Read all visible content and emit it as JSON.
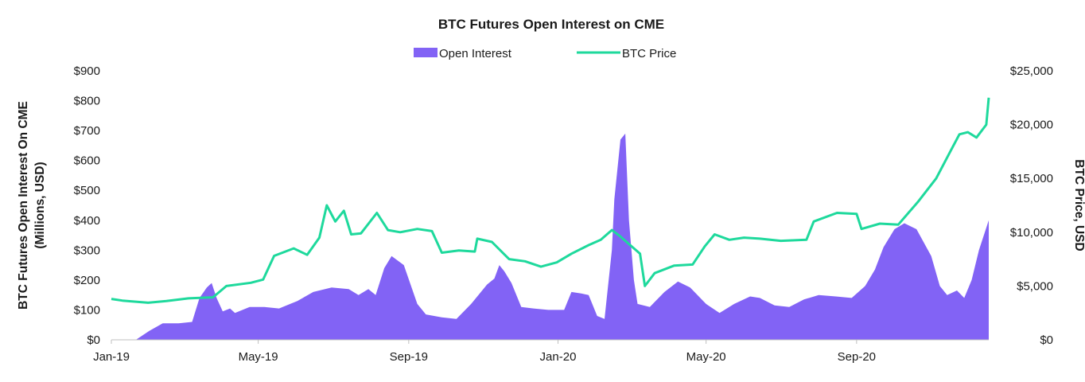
{
  "chart_data": {
    "type": "area",
    "title": "BTC Futures Open Interest on CME",
    "ylabel_left_line1": "BTC Futures Open Interest On CME",
    "ylabel_left_line2": "(Millions, USD)",
    "ylabel_right": "BTC Price, USD",
    "legend_position": "top-center",
    "grid": false,
    "x_start": "2019-01-01",
    "x_end": "2020-12-18",
    "x_ticks": [
      {
        "label": "Jan-19",
        "date": "2019-01-01"
      },
      {
        "label": "May-19",
        "date": "2019-05-01"
      },
      {
        "label": "Sep-19",
        "date": "2019-09-01"
      },
      {
        "label": "Jan-20",
        "date": "2020-01-01"
      },
      {
        "label": "May-20",
        "date": "2020-05-01"
      },
      {
        "label": "Sep-20",
        "date": "2020-09-01"
      }
    ],
    "ylim_left": [
      0,
      900
    ],
    "ylim_right": [
      0,
      25000
    ],
    "y_ticks_left": [
      {
        "label": "$0",
        "value": 0
      },
      {
        "label": "$100",
        "value": 100
      },
      {
        "label": "$200",
        "value": 200
      },
      {
        "label": "$300",
        "value": 300
      },
      {
        "label": "$400",
        "value": 400
      },
      {
        "label": "$500",
        "value": 500
      },
      {
        "label": "$600",
        "value": 600
      },
      {
        "label": "$700",
        "value": 700
      },
      {
        "label": "$800",
        "value": 800
      },
      {
        "label": "$900",
        "value": 900
      }
    ],
    "y_ticks_right": [
      {
        "label": "$0",
        "value": 0
      },
      {
        "label": "$5,000",
        "value": 5000
      },
      {
        "label": "$10,000",
        "value": 10000
      },
      {
        "label": "$15,000",
        "value": 15000
      },
      {
        "label": "$20,000",
        "value": 20000
      },
      {
        "label": "$25,000",
        "value": 25000
      }
    ],
    "series": [
      {
        "name": "Open Interest",
        "axis": "left",
        "color": "#8263f5",
        "kind": "area",
        "points": [
          [
            "2019-01-01",
            0
          ],
          [
            "2019-01-21",
            0
          ],
          [
            "2019-02-01",
            30
          ],
          [
            "2019-02-12",
            55
          ],
          [
            "2019-02-25",
            55
          ],
          [
            "2019-03-08",
            60
          ],
          [
            "2019-03-14",
            140
          ],
          [
            "2019-03-20",
            175
          ],
          [
            "2019-03-24",
            190
          ],
          [
            "2019-03-28",
            140
          ],
          [
            "2019-04-02",
            95
          ],
          [
            "2019-04-08",
            105
          ],
          [
            "2019-04-12",
            90
          ],
          [
            "2019-04-24",
            110
          ],
          [
            "2019-05-06",
            110
          ],
          [
            "2019-05-18",
            105
          ],
          [
            "2019-06-02",
            130
          ],
          [
            "2019-06-15",
            160
          ],
          [
            "2019-06-30",
            175
          ],
          [
            "2019-07-14",
            170
          ],
          [
            "2019-07-22",
            150
          ],
          [
            "2019-07-30",
            170
          ],
          [
            "2019-08-05",
            150
          ],
          [
            "2019-08-12",
            240
          ],
          [
            "2019-08-18",
            280
          ],
          [
            "2019-08-28",
            250
          ],
          [
            "2019-09-08",
            120
          ],
          [
            "2019-09-15",
            85
          ],
          [
            "2019-09-28",
            75
          ],
          [
            "2019-10-10",
            70
          ],
          [
            "2019-10-22",
            120
          ],
          [
            "2019-11-04",
            185
          ],
          [
            "2019-11-10",
            205
          ],
          [
            "2019-11-14",
            250
          ],
          [
            "2019-11-18",
            230
          ],
          [
            "2019-11-24",
            190
          ],
          [
            "2019-12-02",
            110
          ],
          [
            "2019-12-12",
            105
          ],
          [
            "2019-12-24",
            100
          ],
          [
            "2020-01-06",
            100
          ],
          [
            "2020-01-12",
            160
          ],
          [
            "2020-01-20",
            155
          ],
          [
            "2020-01-26",
            150
          ],
          [
            "2020-02-02",
            80
          ],
          [
            "2020-02-08",
            70
          ],
          [
            "2020-02-14",
            300
          ],
          [
            "2020-02-16",
            470
          ],
          [
            "2020-02-21",
            670
          ],
          [
            "2020-02-25",
            690
          ],
          [
            "2020-02-28",
            400
          ],
          [
            "2020-03-03",
            200
          ],
          [
            "2020-03-06",
            120
          ],
          [
            "2020-03-16",
            110
          ],
          [
            "2020-03-28",
            160
          ],
          [
            "2020-04-08",
            195
          ],
          [
            "2020-04-18",
            175
          ],
          [
            "2020-05-01",
            120
          ],
          [
            "2020-05-12",
            90
          ],
          [
            "2020-05-24",
            120
          ],
          [
            "2020-06-06",
            145
          ],
          [
            "2020-06-14",
            140
          ],
          [
            "2020-06-26",
            115
          ],
          [
            "2020-07-08",
            110
          ],
          [
            "2020-07-20",
            135
          ],
          [
            "2020-08-01",
            150
          ],
          [
            "2020-08-15",
            145
          ],
          [
            "2020-08-28",
            140
          ],
          [
            "2020-09-08",
            180
          ],
          [
            "2020-09-16",
            235
          ],
          [
            "2020-09-23",
            310
          ],
          [
            "2020-10-02",
            370
          ],
          [
            "2020-10-10",
            390
          ],
          [
            "2020-10-20",
            370
          ],
          [
            "2020-11-01",
            280
          ],
          [
            "2020-11-08",
            180
          ],
          [
            "2020-11-14",
            150
          ],
          [
            "2020-11-22",
            165
          ],
          [
            "2020-11-28",
            140
          ],
          [
            "2020-12-04",
            200
          ],
          [
            "2020-12-10",
            300
          ],
          [
            "2020-12-18",
            400
          ]
        ]
      },
      {
        "name": "BTC Price",
        "axis": "right",
        "color": "#1ed99c",
        "kind": "line",
        "points": [
          [
            "2019-01-01",
            3800
          ],
          [
            "2019-01-10",
            3650
          ],
          [
            "2019-01-31",
            3450
          ],
          [
            "2019-02-15",
            3600
          ],
          [
            "2019-03-05",
            3850
          ],
          [
            "2019-03-25",
            3950
          ],
          [
            "2019-04-05",
            5000
          ],
          [
            "2019-04-25",
            5300
          ],
          [
            "2019-05-05",
            5600
          ],
          [
            "2019-05-14",
            7800
          ],
          [
            "2019-05-30",
            8500
          ],
          [
            "2019-06-10",
            7900
          ],
          [
            "2019-06-20",
            9500
          ],
          [
            "2019-06-26",
            12500
          ],
          [
            "2019-07-03",
            11000
          ],
          [
            "2019-07-10",
            12000
          ],
          [
            "2019-07-16",
            9800
          ],
          [
            "2019-07-24",
            9900
          ],
          [
            "2019-08-06",
            11800
          ],
          [
            "2019-08-15",
            10200
          ],
          [
            "2019-08-25",
            10000
          ],
          [
            "2019-09-08",
            10300
          ],
          [
            "2019-09-20",
            10100
          ],
          [
            "2019-09-28",
            8100
          ],
          [
            "2019-10-12",
            8300
          ],
          [
            "2019-10-25",
            8200
          ],
          [
            "2019-10-27",
            9400
          ],
          [
            "2019-11-08",
            9100
          ],
          [
            "2019-11-22",
            7500
          ],
          [
            "2019-12-05",
            7300
          ],
          [
            "2019-12-18",
            6800
          ],
          [
            "2019-12-31",
            7200
          ],
          [
            "2020-01-12",
            8000
          ],
          [
            "2020-01-26",
            8800
          ],
          [
            "2020-02-05",
            9300
          ],
          [
            "2020-02-14",
            10200
          ],
          [
            "2020-02-20",
            9700
          ],
          [
            "2020-03-01",
            8700
          ],
          [
            "2020-03-08",
            8000
          ],
          [
            "2020-03-12",
            5000
          ],
          [
            "2020-03-20",
            6200
          ],
          [
            "2020-04-05",
            6900
          ],
          [
            "2020-04-20",
            7000
          ],
          [
            "2020-04-30",
            8700
          ],
          [
            "2020-05-08",
            9800
          ],
          [
            "2020-05-20",
            9300
          ],
          [
            "2020-06-01",
            9500
          ],
          [
            "2020-06-14",
            9400
          ],
          [
            "2020-07-01",
            9200
          ],
          [
            "2020-07-22",
            9300
          ],
          [
            "2020-07-28",
            11000
          ],
          [
            "2020-08-16",
            11800
          ],
          [
            "2020-09-01",
            11700
          ],
          [
            "2020-09-05",
            10300
          ],
          [
            "2020-09-20",
            10800
          ],
          [
            "2020-10-05",
            10700
          ],
          [
            "2020-10-21",
            12800
          ],
          [
            "2020-11-05",
            15000
          ],
          [
            "2020-11-18",
            17800
          ],
          [
            "2020-11-24",
            19100
          ],
          [
            "2020-12-01",
            19300
          ],
          [
            "2020-12-08",
            18800
          ],
          [
            "2020-12-16",
            20000
          ],
          [
            "2020-12-18",
            22500
          ]
        ]
      }
    ]
  }
}
